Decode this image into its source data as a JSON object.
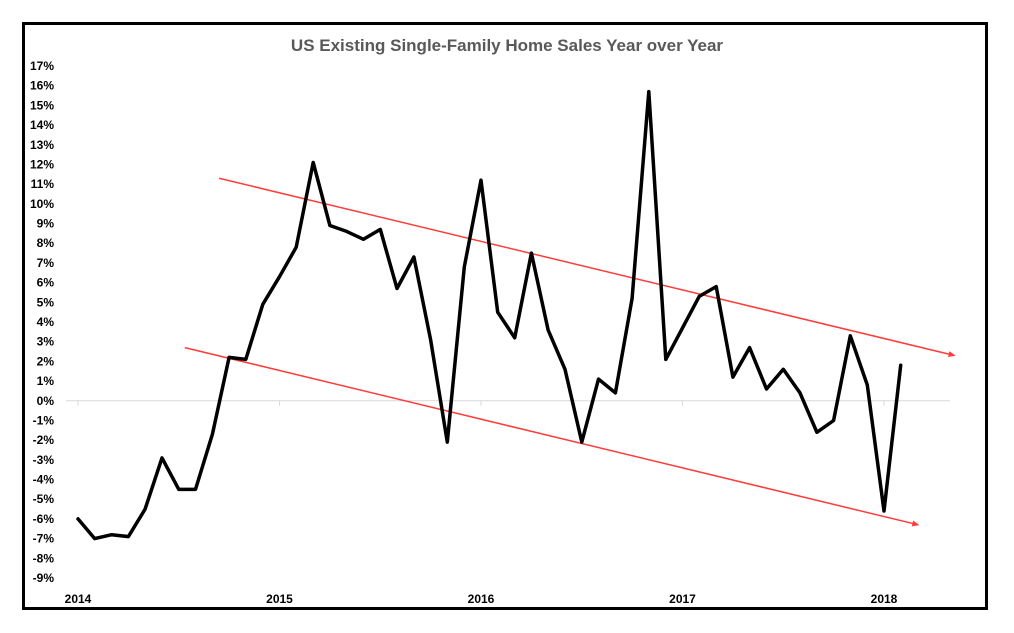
{
  "chart_data": {
    "type": "line",
    "title": "US Existing Single-Family Home Sales Year over Year",
    "xlabel": "",
    "ylabel": "",
    "ylim": [
      -9,
      17
    ],
    "xlim": [
      2014,
      2018.4
    ],
    "y_ticks": [
      17,
      16,
      15,
      14,
      13,
      12,
      11,
      10,
      9,
      8,
      7,
      6,
      5,
      4,
      3,
      2,
      1,
      0,
      -1,
      -2,
      -3,
      -4,
      -5,
      -6,
      -7,
      -8,
      -9
    ],
    "y_tick_suffix": "%",
    "x_ticks": [
      "2014",
      "2015",
      "2016",
      "2017",
      "2018"
    ],
    "grid": false,
    "legend": "none",
    "series": [
      {
        "color": "#000000",
        "x": [
          2014.0,
          2014.083,
          2014.167,
          2014.25,
          2014.333,
          2014.417,
          2014.5,
          2014.583,
          2014.667,
          2014.75,
          2014.833,
          2014.917,
          2015.0,
          2015.083,
          2015.167,
          2015.25,
          2015.333,
          2015.417,
          2015.5,
          2015.583,
          2015.667,
          2015.75,
          2015.833,
          2015.917,
          2016.0,
          2016.083,
          2016.167,
          2016.25,
          2016.333,
          2016.417,
          2016.5,
          2016.583,
          2016.667,
          2016.75,
          2016.833,
          2016.917,
          2017.0,
          2017.083,
          2017.167,
          2017.25,
          2017.333,
          2017.417,
          2017.5,
          2017.583,
          2017.667,
          2017.75,
          2017.833,
          2017.917,
          2018.0,
          2018.083
        ],
        "values": [
          -6.0,
          -7.0,
          -6.8,
          -6.9,
          -5.5,
          -2.9,
          -4.5,
          -4.5,
          -1.7,
          2.2,
          2.1,
          4.9,
          6.3,
          7.8,
          12.1,
          8.9,
          8.6,
          8.2,
          8.7,
          5.7,
          7.3,
          3.1,
          -2.1,
          6.8,
          11.2,
          4.5,
          3.2,
          7.5,
          3.6,
          1.6,
          -2.1,
          1.1,
          0.4,
          5.2,
          15.7,
          2.1,
          3.7,
          5.3,
          5.8,
          1.2,
          2.7,
          0.6,
          1.6,
          0.4,
          -1.6,
          -1.0,
          3.3,
          0.8,
          -5.6,
          1.8
        ]
      }
    ],
    "trend_lines": [
      {
        "color": "#ff3b3b",
        "x": [
          2014.7,
          2018.35
        ],
        "y": [
          11.3,
          2.3
        ]
      },
      {
        "color": "#ff3b3b",
        "x": [
          2014.53,
          2018.17
        ],
        "y": [
          2.7,
          -6.3
        ]
      }
    ]
  }
}
